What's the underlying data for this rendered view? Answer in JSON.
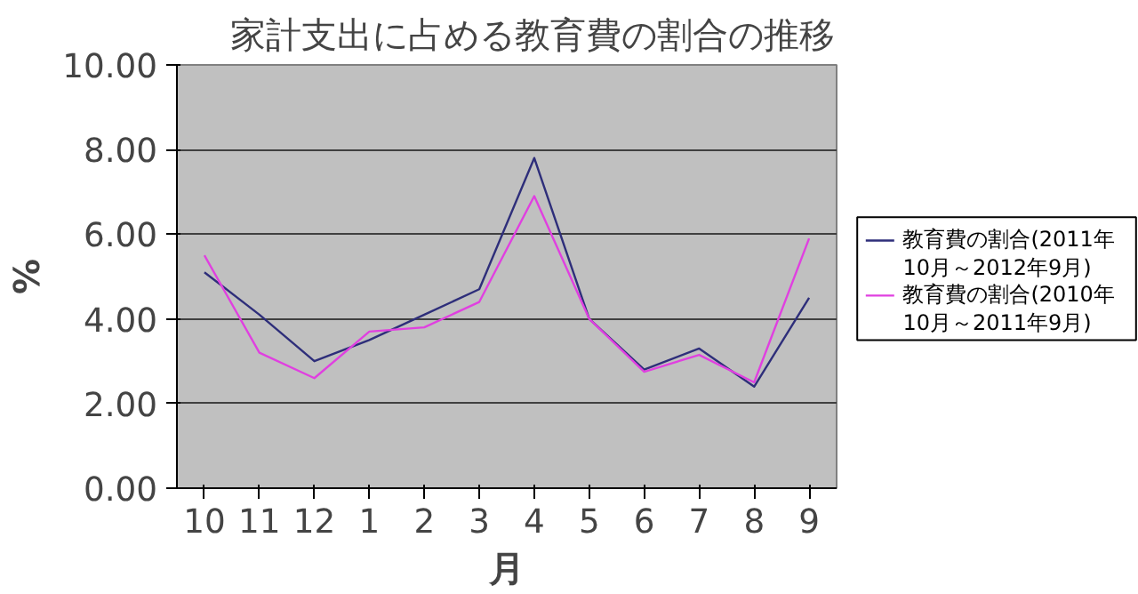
{
  "chart_data": {
    "type": "line",
    "title": "家計支出に占める教育費の割合の推移",
    "xlabel": "月",
    "ylabel": "%",
    "categories": [
      "10",
      "11",
      "12",
      "1",
      "2",
      "3",
      "4",
      "5",
      "6",
      "7",
      "8",
      "9"
    ],
    "series": [
      {
        "name": "教育費の割合(2011年10月～2012年9月)",
        "color": "#2e2e7a",
        "values": [
          5.1,
          4.1,
          3.0,
          3.5,
          4.1,
          4.7,
          7.8,
          4.0,
          2.8,
          3.3,
          2.4,
          4.5
        ]
      },
      {
        "name": "教育費の割合(2010年10月～2011年9月)",
        "color": "#e040e0",
        "values": [
          5.5,
          3.2,
          2.6,
          3.7,
          3.8,
          4.4,
          6.9,
          4.0,
          2.75,
          3.15,
          2.5,
          5.9
        ]
      }
    ],
    "ylim": [
      0,
      10
    ],
    "yticks": [
      {
        "value": 0,
        "label": "0.00"
      },
      {
        "value": 2,
        "label": "2.00"
      },
      {
        "value": 4,
        "label": "4.00"
      },
      {
        "value": 6,
        "label": "6.00"
      },
      {
        "value": 8,
        "label": "8.00"
      },
      {
        "value": 10,
        "label": "10.00"
      }
    ],
    "grid": "y",
    "legend": "right",
    "marker": "none",
    "line_style": "solid"
  }
}
